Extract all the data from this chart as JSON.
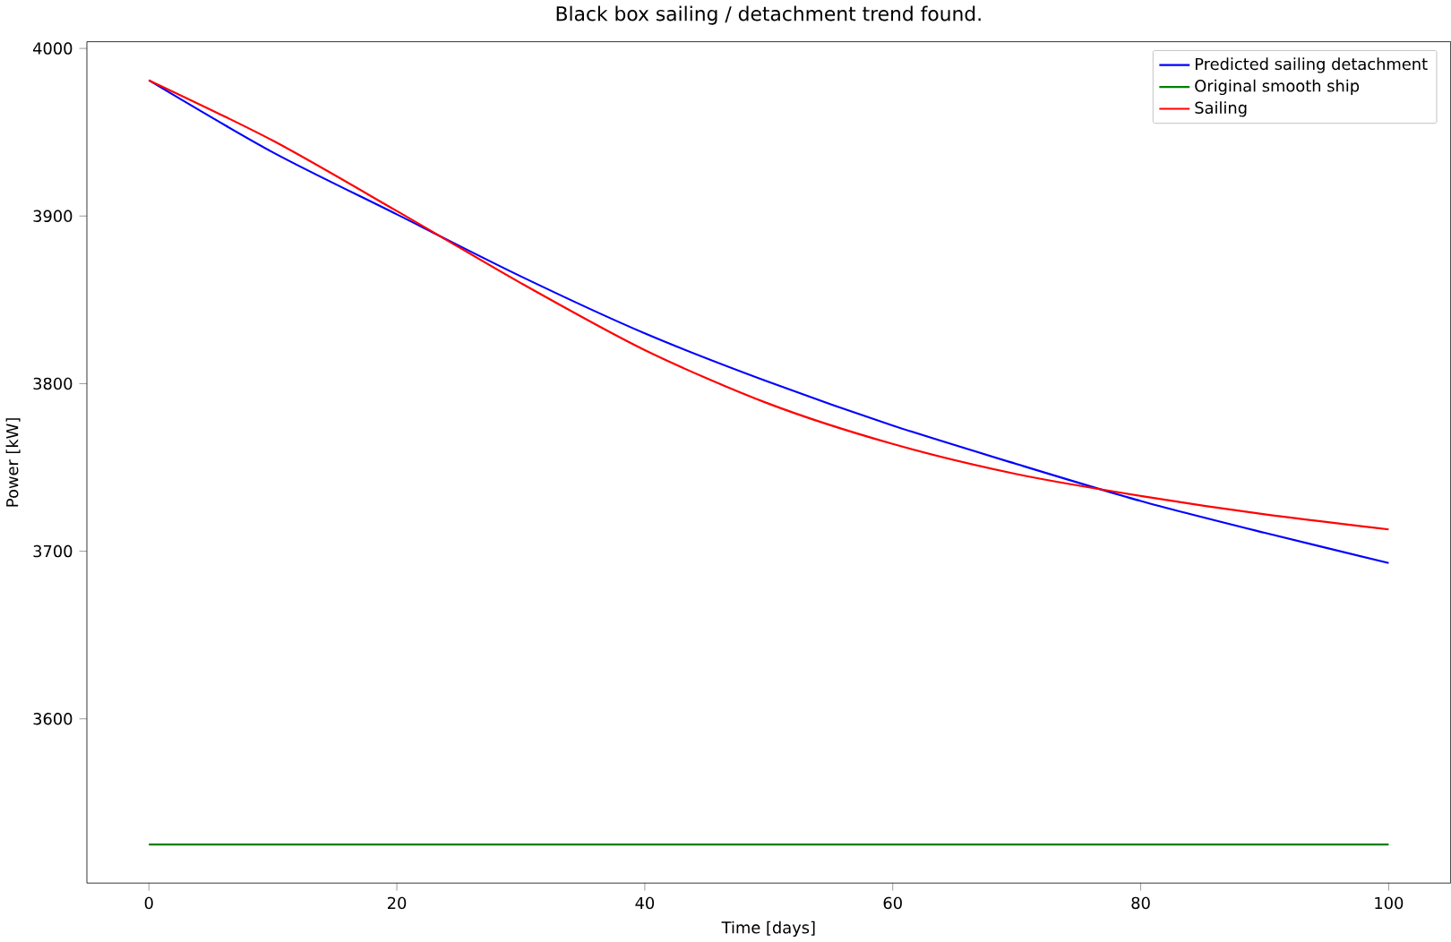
{
  "chart_data": {
    "type": "line",
    "title": "Black box sailing / detachment trend found.",
    "xlabel": "Time [days]",
    "ylabel": "Power [kW]",
    "x": [
      0,
      10,
      20,
      30,
      40,
      50,
      60,
      70,
      80,
      90,
      100
    ],
    "series": [
      {
        "name": "Predicted sailing detachment",
        "color": "#0000ff",
        "values": [
          3981,
          3938,
          3901,
          3864,
          3830,
          3801,
          3775,
          3752,
          3730,
          3711,
          3693
        ]
      },
      {
        "name": "Original smooth ship",
        "color": "#008000",
        "values": [
          3525,
          3525,
          3525,
          3525,
          3525,
          3525,
          3525,
          3525,
          3525,
          3525,
          3525
        ]
      },
      {
        "name": "Sailing",
        "color": "#ff0000",
        "values": [
          3981,
          3945,
          3903,
          3860,
          3820,
          3788,
          3764,
          3746,
          3733,
          3722,
          3713
        ]
      }
    ],
    "xlim": [
      -5,
      105
    ],
    "ylim": [
      3502,
      4004
    ],
    "xticks": [
      0,
      20,
      40,
      60,
      80,
      100
    ],
    "yticks": [
      3600,
      3700,
      3800,
      3900,
      4000
    ],
    "grid": false,
    "legend": "top right",
    "marker": "none",
    "line_style": "solid"
  }
}
